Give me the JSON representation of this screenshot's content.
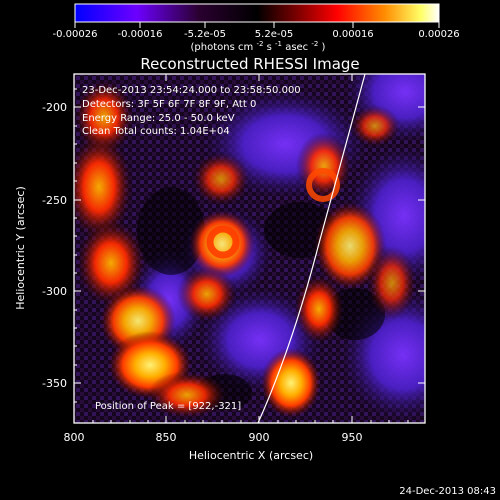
{
  "window": {
    "title": "Reconstructed RHESSI Image",
    "timestamp": "24-Dec-2013 08:43"
  },
  "colorbar": {
    "ticks": [
      "-0.00026",
      "-0.00016",
      "-5.2e-05",
      "5.2e-05",
      "0.00016",
      "0.00026"
    ],
    "unit_label": "(photons cm",
    "unit_sup1": "-2",
    "unit_mid": " s",
    "unit_sup2": "-1",
    "unit_end": " asec",
    "unit_sup3": "-2",
    "unit_close": ")",
    "colors": [
      "#0000ff",
      "#7a00d8",
      "#000000",
      "#ff0000",
      "#ff7f00",
      "#ffff00",
      "#ffffff"
    ]
  },
  "plot": {
    "xlabel": "Heliocentric X (arcsec)",
    "ylabel": "Heliocentric Y (arcsec)",
    "x_ticks": [
      "800",
      "850",
      "900",
      "950"
    ],
    "y_ticks": [
      "-200",
      "-250",
      "-300",
      "-350"
    ],
    "annotations": {
      "time_range": "23-Dec-2013 23:54:24.000 to 23:58:50.000",
      "detectors": "Detectors: 3F 5F 6F 7F 8F 9F, Att 0",
      "energy": "Energy Range: 25.0 - 50.0 keV",
      "clean": "Clean    Total counts: 1.04E+04",
      "peak": "Position of Peak = [922,-321]"
    }
  }
}
